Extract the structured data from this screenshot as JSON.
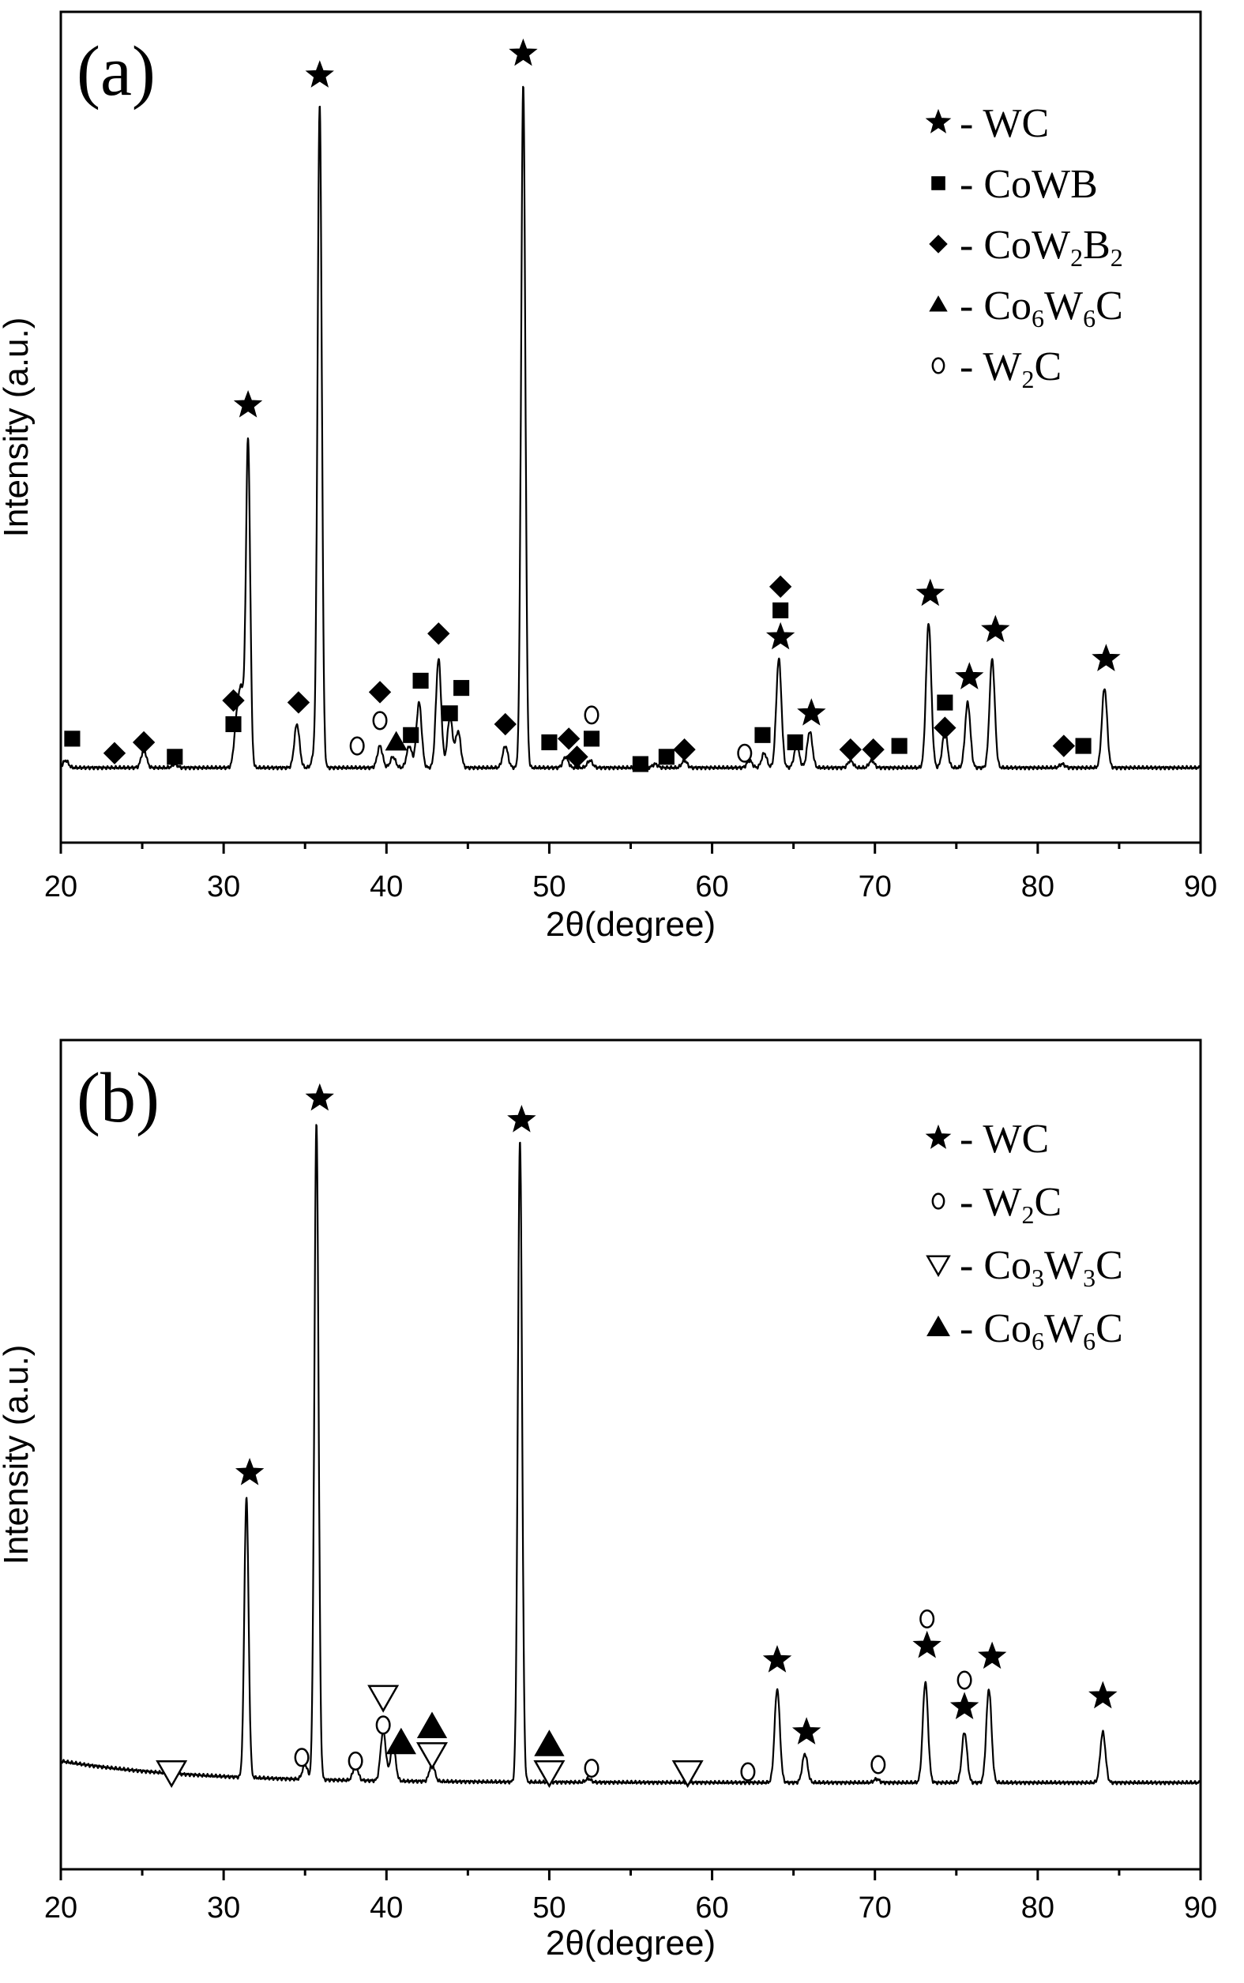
{
  "chart_data": [
    {
      "type": "line",
      "panel_label": "(a)",
      "xlabel": "2θ(degree)",
      "ylabel": "Intensity (a.u.)",
      "xlim": [
        20,
        90
      ],
      "ylim": [
        0,
        100
      ],
      "x_ticks": [
        20,
        30,
        40,
        50,
        60,
        70,
        80,
        90
      ],
      "baseline": 5,
      "peaks": [
        {
          "x": 20.3,
          "y": 6
        },
        {
          "x": 25.1,
          "y": 7.5
        },
        {
          "x": 27.0,
          "y": 5.5
        },
        {
          "x": 30.8,
          "y": 11
        },
        {
          "x": 31.1,
          "y": 15
        },
        {
          "x": 31.5,
          "y": 50
        },
        {
          "x": 34.5,
          "y": 11
        },
        {
          "x": 35.6,
          "y": 7
        },
        {
          "x": 35.9,
          "y": 96
        },
        {
          "x": 39.6,
          "y": 8
        },
        {
          "x": 40.4,
          "y": 6.5
        },
        {
          "x": 41.4,
          "y": 8
        },
        {
          "x": 42.0,
          "y": 14
        },
        {
          "x": 43.2,
          "y": 20
        },
        {
          "x": 43.9,
          "y": 12
        },
        {
          "x": 44.4,
          "y": 10
        },
        {
          "x": 47.3,
          "y": 8
        },
        {
          "x": 48.4,
          "y": 99
        },
        {
          "x": 51.0,
          "y": 6.5
        },
        {
          "x": 52.5,
          "y": 6
        },
        {
          "x": 56.5,
          "y": 5.5
        },
        {
          "x": 58.3,
          "y": 6
        },
        {
          "x": 62.3,
          "y": 6
        },
        {
          "x": 63.2,
          "y": 7
        },
        {
          "x": 64.1,
          "y": 20
        },
        {
          "x": 65.2,
          "y": 8
        },
        {
          "x": 66.0,
          "y": 10
        },
        {
          "x": 68.5,
          "y": 6
        },
        {
          "x": 69.8,
          "y": 6
        },
        {
          "x": 73.3,
          "y": 25
        },
        {
          "x": 74.3,
          "y": 10
        },
        {
          "x": 75.7,
          "y": 14
        },
        {
          "x": 77.2,
          "y": 20
        },
        {
          "x": 81.5,
          "y": 5.5
        },
        {
          "x": 84.1,
          "y": 16
        }
      ],
      "annotations": [
        {
          "x": 31.5,
          "y": 55,
          "markers": [
            "star"
          ]
        },
        {
          "x": 35.9,
          "y": 100.5,
          "markers": [
            "star"
          ]
        },
        {
          "x": 48.4,
          "y": 103.5,
          "markers": [
            "star"
          ]
        },
        {
          "x": 20.7,
          "y": 9,
          "markers": [
            "square"
          ]
        },
        {
          "x": 23.3,
          "y": 7,
          "markers": [
            "diamond"
          ]
        },
        {
          "x": 25.1,
          "y": 8.5,
          "markers": [
            "diamond"
          ]
        },
        {
          "x": 27.0,
          "y": 6.5,
          "markers": [
            "square"
          ]
        },
        {
          "x": 30.6,
          "y": 11,
          "markers": [
            "square",
            "diamond"
          ]
        },
        {
          "x": 34.6,
          "y": 14,
          "markers": [
            "diamond"
          ]
        },
        {
          "x": 38.2,
          "y": 8,
          "markers": [
            "circle"
          ]
        },
        {
          "x": 39.6,
          "y": 11.5,
          "markers": [
            "circle",
            "diamond"
          ]
        },
        {
          "x": 40.6,
          "y": 8.5,
          "markers": [
            "triangle"
          ]
        },
        {
          "x": 41.5,
          "y": 9.5,
          "markers": [
            "square"
          ]
        },
        {
          "x": 42.1,
          "y": 17,
          "markers": [
            "square"
          ]
        },
        {
          "x": 43.2,
          "y": 23.5,
          "markers": [
            "diamond"
          ]
        },
        {
          "x": 43.9,
          "y": 12.5,
          "markers": [
            "square"
          ]
        },
        {
          "x": 44.6,
          "y": 16,
          "markers": [
            "square"
          ]
        },
        {
          "x": 47.3,
          "y": 11,
          "markers": [
            "diamond"
          ]
        },
        {
          "x": 50.0,
          "y": 8.5,
          "markers": [
            "square"
          ]
        },
        {
          "x": 51.2,
          "y": 9,
          "markers": [
            "diamond"
          ]
        },
        {
          "x": 51.7,
          "y": 6.5,
          "markers": [
            "diamond"
          ]
        },
        {
          "x": 52.6,
          "y": 9,
          "markers": [
            "square",
            "circle"
          ]
        },
        {
          "x": 55.6,
          "y": 5.5,
          "markers": [
            "square"
          ]
        },
        {
          "x": 57.2,
          "y": 6.5,
          "markers": [
            "square"
          ]
        },
        {
          "x": 58.3,
          "y": 7.5,
          "markers": [
            "diamond"
          ]
        },
        {
          "x": 62.0,
          "y": 7,
          "markers": [
            "circle"
          ]
        },
        {
          "x": 63.1,
          "y": 9.5,
          "markers": [
            "square"
          ]
        },
        {
          "x": 64.2,
          "y": 23,
          "markers": [
            "star",
            "square",
            "diamond"
          ]
        },
        {
          "x": 65.1,
          "y": 8.5,
          "markers": [
            "square"
          ]
        },
        {
          "x": 66.1,
          "y": 12.5,
          "markers": [
            "star"
          ]
        },
        {
          "x": 68.5,
          "y": 7.5,
          "markers": [
            "diamond"
          ]
        },
        {
          "x": 69.9,
          "y": 7.5,
          "markers": [
            "diamond"
          ]
        },
        {
          "x": 71.5,
          "y": 8,
          "markers": [
            "square"
          ]
        },
        {
          "x": 73.4,
          "y": 29,
          "markers": [
            "star"
          ]
        },
        {
          "x": 74.3,
          "y": 10.5,
          "markers": [
            "diamond",
            "square"
          ]
        },
        {
          "x": 75.8,
          "y": 17.5,
          "markers": [
            "star"
          ]
        },
        {
          "x": 77.4,
          "y": 24,
          "markers": [
            "star"
          ]
        },
        {
          "x": 81.6,
          "y": 8,
          "markers": [
            "diamond"
          ]
        },
        {
          "x": 82.8,
          "y": 8,
          "markers": [
            "square"
          ]
        },
        {
          "x": 84.2,
          "y": 20,
          "markers": [
            "star"
          ]
        }
      ],
      "legend": [
        {
          "marker": "star",
          "text": "- WC"
        },
        {
          "marker": "square",
          "text": "- CoWB"
        },
        {
          "marker": "diamond",
          "text": "- CoW",
          "sub1": "2",
          "mid": "B",
          "sub2": "2"
        },
        {
          "marker": "triangle",
          "text": "- Co",
          "sub1": "6",
          "mid": "W",
          "sub2": "6",
          "tail": "C"
        },
        {
          "marker": "circle",
          "text": "- W",
          "sub1": "2",
          "mid": "C"
        }
      ]
    },
    {
      "type": "line",
      "panel_label": "(b)",
      "xlabel": "2θ(degree)",
      "ylabel": "Intensity (a.u.)",
      "xlim": [
        20,
        90
      ],
      "ylim": [
        0,
        100
      ],
      "x_ticks": [
        20,
        30,
        40,
        50,
        60,
        70,
        80,
        90
      ],
      "baseline": 6,
      "peaks": [
        {
          "x": 31.4,
          "y": 45
        },
        {
          "x": 35.0,
          "y": 8
        },
        {
          "x": 35.7,
          "y": 97
        },
        {
          "x": 38.1,
          "y": 8
        },
        {
          "x": 39.8,
          "y": 13
        },
        {
          "x": 40.4,
          "y": 11
        },
        {
          "x": 42.8,
          "y": 8.5
        },
        {
          "x": 48.2,
          "y": 95
        },
        {
          "x": 52.4,
          "y": 6.5
        },
        {
          "x": 62.2,
          "y": 6
        },
        {
          "x": 64.0,
          "y": 19
        },
        {
          "x": 65.7,
          "y": 10
        },
        {
          "x": 70.1,
          "y": 6.5
        },
        {
          "x": 73.1,
          "y": 20
        },
        {
          "x": 75.5,
          "y": 13
        },
        {
          "x": 77.0,
          "y": 19
        },
        {
          "x": 84.0,
          "y": 13
        }
      ],
      "annotations": [
        {
          "x": 31.6,
          "y": 49,
          "markers": [
            "star"
          ]
        },
        {
          "x": 35.9,
          "y": 101,
          "markers": [
            "star"
          ]
        },
        {
          "x": 48.3,
          "y": 98,
          "markers": [
            "star"
          ]
        },
        {
          "x": 26.8,
          "y": 7.5,
          "markers": [
            "dtriangle"
          ]
        },
        {
          "x": 34.8,
          "y": 9.5,
          "markers": [
            "circle"
          ]
        },
        {
          "x": 38.1,
          "y": 9,
          "markers": [
            "circle"
          ]
        },
        {
          "x": 39.8,
          "y": 14,
          "markers": [
            "circle",
            "dtriangle"
          ]
        },
        {
          "x": 40.9,
          "y": 11.5,
          "markers": [
            "ftriangle"
          ]
        },
        {
          "x": 42.8,
          "y": 10,
          "markers": [
            "dtriangle",
            "ftriangle"
          ]
        },
        {
          "x": 50.0,
          "y": 7.5,
          "markers": [
            "dtriangle",
            "ftriangle"
          ]
        },
        {
          "x": 52.6,
          "y": 8,
          "markers": [
            "circle"
          ]
        },
        {
          "x": 58.5,
          "y": 7.5,
          "markers": [
            "dtriangle"
          ]
        },
        {
          "x": 62.2,
          "y": 7.5,
          "markers": [
            "circle"
          ]
        },
        {
          "x": 64.0,
          "y": 23,
          "markers": [
            "star"
          ]
        },
        {
          "x": 65.8,
          "y": 13,
          "markers": [
            "star"
          ]
        },
        {
          "x": 70.2,
          "y": 8.5,
          "markers": [
            "circle"
          ]
        },
        {
          "x": 73.2,
          "y": 25,
          "markers": [
            "star",
            "circle"
          ]
        },
        {
          "x": 75.5,
          "y": 16.5,
          "markers": [
            "star",
            "circle"
          ]
        },
        {
          "x": 77.2,
          "y": 23.5,
          "markers": [
            "star"
          ]
        },
        {
          "x": 84.0,
          "y": 18,
          "markers": [
            "star"
          ]
        }
      ],
      "legend": [
        {
          "marker": "star",
          "text": "- WC"
        },
        {
          "marker": "circle",
          "text": "- W",
          "sub1": "2",
          "mid": "C"
        },
        {
          "marker": "dtriangle",
          "text": "- Co",
          "sub1": "3",
          "mid": "W",
          "sub2": "3",
          "tail": "C"
        },
        {
          "marker": "ftriangle",
          "text": "- Co",
          "sub1": "6",
          "mid": "W",
          "sub2": "6",
          "tail": "C"
        }
      ]
    }
  ]
}
